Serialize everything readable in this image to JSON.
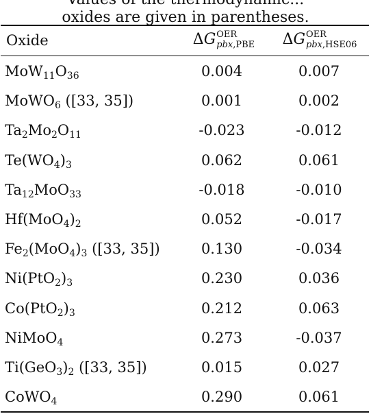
{
  "caption": {
    "line1": "Values of the thermodynamic...",
    "line2": "oxides are given in parentheses."
  },
  "header": {
    "oxide": "Oxide",
    "delta": "Δ",
    "g": "G",
    "sup": "OER",
    "col1_sub_italic": "pbx",
    "col1_sub_rest": ",PBE",
    "col2_sub_italic": "pbx",
    "col2_sub_rest": ",HSE06"
  },
  "rows": [
    {
      "oxide": [
        [
          "MoW",
          ""
        ],
        [
          "11",
          "sub"
        ],
        [
          "O",
          ""
        ],
        [
          "36",
          "sub"
        ]
      ],
      "pbe": "0.004",
      "hse": "0.007"
    },
    {
      "oxide": [
        [
          "MoWO",
          ""
        ],
        [
          "6",
          "sub"
        ],
        [
          " ([33, 35])",
          ""
        ]
      ],
      "pbe": "0.001",
      "hse": "0.002"
    },
    {
      "oxide": [
        [
          "Ta",
          ""
        ],
        [
          "2",
          "sub"
        ],
        [
          "Mo",
          ""
        ],
        [
          "2",
          "sub"
        ],
        [
          "O",
          ""
        ],
        [
          "11",
          "sub"
        ]
      ],
      "pbe": "-0.023",
      "hse": "-0.012"
    },
    {
      "oxide": [
        [
          "Te(WO",
          ""
        ],
        [
          "4",
          "sub"
        ],
        [
          ")",
          ""
        ],
        [
          "3",
          "sub"
        ]
      ],
      "pbe": "0.062",
      "hse": "0.061"
    },
    {
      "oxide": [
        [
          "Ta",
          ""
        ],
        [
          "12",
          "sub"
        ],
        [
          "MoO",
          ""
        ],
        [
          "33",
          "sub"
        ]
      ],
      "pbe": "-0.018",
      "hse": "-0.010"
    },
    {
      "oxide": [
        [
          "Hf(MoO",
          ""
        ],
        [
          "4",
          "sub"
        ],
        [
          ")",
          ""
        ],
        [
          "2",
          "sub"
        ]
      ],
      "pbe": "0.052",
      "hse": "-0.017"
    },
    {
      "oxide": [
        [
          "Fe",
          ""
        ],
        [
          "2",
          "sub"
        ],
        [
          "(MoO",
          ""
        ],
        [
          "4",
          "sub"
        ],
        [
          ")",
          ""
        ],
        [
          "3",
          "sub"
        ],
        [
          " ([33, 35])",
          ""
        ]
      ],
      "pbe": "0.130",
      "hse": "-0.034"
    },
    {
      "oxide": [
        [
          "Ni(PtO",
          ""
        ],
        [
          "2",
          "sub"
        ],
        [
          ")",
          ""
        ],
        [
          "3",
          "sub"
        ]
      ],
      "pbe": "0.230",
      "hse": "0.036"
    },
    {
      "oxide": [
        [
          "Co(PtO",
          ""
        ],
        [
          "2",
          "sub"
        ],
        [
          ")",
          ""
        ],
        [
          "3",
          "sub"
        ]
      ],
      "pbe": "0.212",
      "hse": "0.063"
    },
    {
      "oxide": [
        [
          "NiMoO",
          ""
        ],
        [
          "4",
          "sub"
        ]
      ],
      "pbe": "0.273",
      "hse": "-0.037"
    },
    {
      "oxide": [
        [
          "Ti(GeO",
          ""
        ],
        [
          "3",
          "sub"
        ],
        [
          ")",
          ""
        ],
        [
          "2",
          "sub"
        ],
        [
          " ([33, 35])",
          ""
        ]
      ],
      "pbe": "0.015",
      "hse": "0.027"
    },
    {
      "oxide": [
        [
          "CoWO",
          ""
        ],
        [
          "4",
          "sub"
        ]
      ],
      "pbe": "0.290",
      "hse": "0.061"
    }
  ]
}
